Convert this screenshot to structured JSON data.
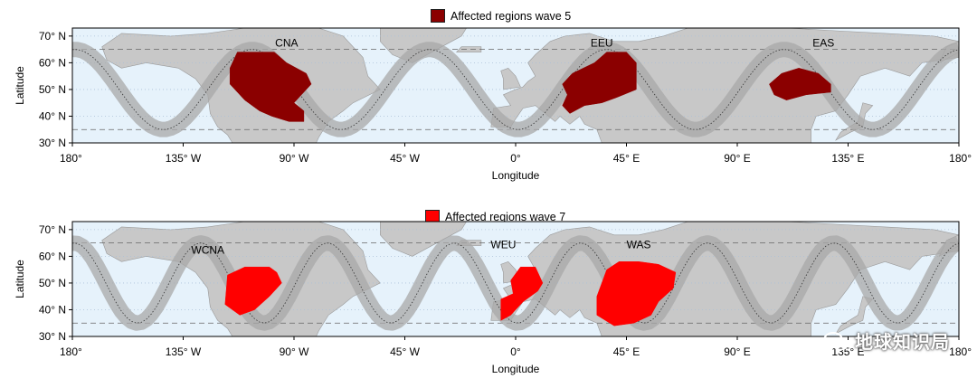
{
  "panels": [
    {
      "legend": "Affected regions wave 5",
      "legend_color": "#8b0000",
      "region_color": "#8b0000",
      "region_labels": [
        "CNA",
        "EEU",
        "EAS"
      ],
      "y_ticks": [
        "70° N",
        "60° N",
        "50° N",
        "40° N",
        "30° N"
      ],
      "x_ticks": [
        "180°",
        "135° W",
        "90° W",
        "45° W",
        "0°",
        "45° E",
        "90° E",
        "135° E",
        "180°"
      ],
      "ylabel": "Latitude",
      "xlabel": "Longitude"
    },
    {
      "legend": "Affected regions wave 7",
      "legend_color": "#ff0000",
      "region_color": "#ff0000",
      "region_labels": [
        "WCNA",
        "WEU",
        "WAS"
      ],
      "y_ticks": [
        "70° N",
        "60° N",
        "50° N",
        "40° N",
        "30° N"
      ],
      "x_ticks": [
        "180°",
        "135° W",
        "90° W",
        "45° W",
        "0°",
        "45° E",
        "90° E",
        "135° E",
        "180°"
      ],
      "ylabel": "Latitude",
      "xlabel": "Longitude"
    }
  ],
  "watermark": "地球知识局",
  "colors": {
    "ocean": "#e6f2fb",
    "land": "#c8c8c8",
    "wave_band": "#a8a8a8"
  }
}
